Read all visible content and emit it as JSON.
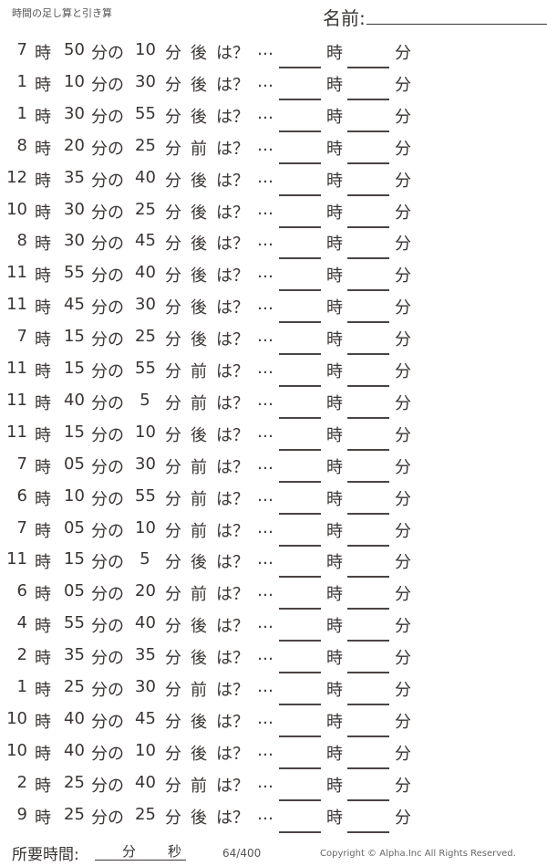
{
  "header": {
    "title": "時間の足し算と引き算",
    "name_label": "名前:"
  },
  "labels": {
    "hour": "時",
    "minute": "分",
    "of": "分の",
    "question": "は？",
    "ellipsis": "…",
    "after": "後",
    "before": "前"
  },
  "problems": [
    {
      "hour": "7",
      "minute": "50",
      "amount": "10",
      "direction": "後"
    },
    {
      "hour": "1",
      "minute": "10",
      "amount": "30",
      "direction": "後"
    },
    {
      "hour": "1",
      "minute": "30",
      "amount": "55",
      "direction": "後"
    },
    {
      "hour": "8",
      "minute": "20",
      "amount": "25",
      "direction": "前"
    },
    {
      "hour": "12",
      "minute": "35",
      "amount": "40",
      "direction": "後"
    },
    {
      "hour": "10",
      "minute": "30",
      "amount": "25",
      "direction": "後"
    },
    {
      "hour": "8",
      "minute": "30",
      "amount": "45",
      "direction": "後"
    },
    {
      "hour": "11",
      "minute": "55",
      "amount": "40",
      "direction": "後"
    },
    {
      "hour": "11",
      "minute": "45",
      "amount": "30",
      "direction": "後"
    },
    {
      "hour": "7",
      "minute": "15",
      "amount": "25",
      "direction": "後"
    },
    {
      "hour": "11",
      "minute": "15",
      "amount": "55",
      "direction": "前"
    },
    {
      "hour": "11",
      "minute": "40",
      "amount": "5",
      "direction": "前"
    },
    {
      "hour": "11",
      "minute": "15",
      "amount": "10",
      "direction": "後"
    },
    {
      "hour": "7",
      "minute": "05",
      "amount": "30",
      "direction": "前"
    },
    {
      "hour": "6",
      "minute": "10",
      "amount": "55",
      "direction": "前"
    },
    {
      "hour": "7",
      "minute": "05",
      "amount": "10",
      "direction": "前"
    },
    {
      "hour": "11",
      "minute": "15",
      "amount": "5",
      "direction": "後"
    },
    {
      "hour": "6",
      "minute": "05",
      "amount": "20",
      "direction": "前"
    },
    {
      "hour": "4",
      "minute": "55",
      "amount": "40",
      "direction": "後"
    },
    {
      "hour": "2",
      "minute": "35",
      "amount": "35",
      "direction": "後"
    },
    {
      "hour": "1",
      "minute": "25",
      "amount": "30",
      "direction": "前"
    },
    {
      "hour": "10",
      "minute": "40",
      "amount": "45",
      "direction": "後"
    },
    {
      "hour": "10",
      "minute": "40",
      "amount": "10",
      "direction": "後"
    },
    {
      "hour": "2",
      "minute": "25",
      "amount": "40",
      "direction": "前"
    },
    {
      "hour": "9",
      "minute": "25",
      "amount": "25",
      "direction": "後"
    }
  ],
  "footer": {
    "time_label": "所要時間:",
    "minutes": "分",
    "seconds": "秒",
    "page": "64/400",
    "copyright": "Copyright ©  Alpha.Inc All Rights Reserved."
  }
}
